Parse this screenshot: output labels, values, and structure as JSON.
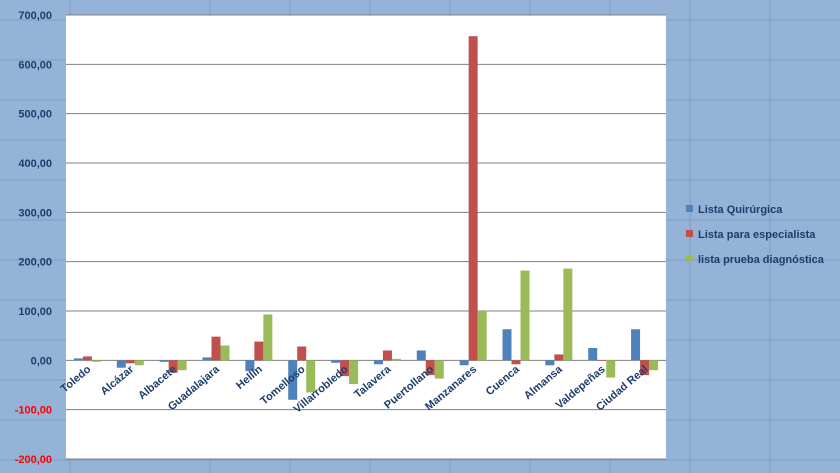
{
  "chart_data": {
    "type": "bar",
    "categories": [
      "Toledo",
      "Alcázar",
      "Albacete",
      "Guadalajara",
      "Hellín",
      "Tomelloso",
      "Villarrobledo",
      "Talavera",
      "Puertollano",
      "Manzanares",
      "Cuenca",
      "Almansa",
      "Valdepeñas",
      "Ciudad Real"
    ],
    "series": [
      {
        "name": "Lista Quirúrgica",
        "color": "#4f81bd",
        "values": [
          4,
          -15,
          -3,
          6,
          -22,
          -80,
          -5,
          -8,
          20,
          -10,
          63,
          -10,
          25,
          63
        ]
      },
      {
        "name": "Lista para  especialista",
        "color": "#c0504d",
        "values": [
          8,
          -6,
          -25,
          48,
          38,
          28,
          -32,
          20,
          -30,
          657,
          -8,
          12,
          0,
          -30
        ]
      },
      {
        "name": "lista prueba diagnóstica",
        "color": "#9bbb59",
        "values": [
          -3,
          -10,
          -20,
          30,
          93,
          -65,
          -48,
          3,
          -37,
          100,
          182,
          186,
          -35,
          -20
        ]
      }
    ],
    "ylim": [
      -200,
      700
    ],
    "yticks": [
      "-200,00",
      "-100,00",
      "0,00",
      "100,00",
      "200,00",
      "300,00",
      "400,00",
      "500,00",
      "600,00",
      "700,00"
    ],
    "grid": true,
    "legend_position": "right"
  }
}
